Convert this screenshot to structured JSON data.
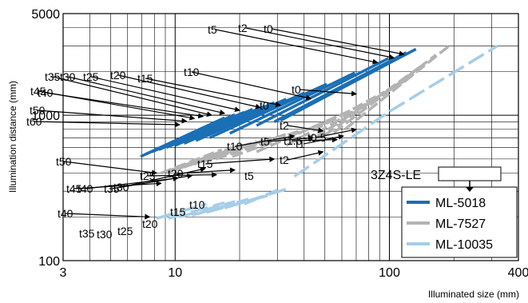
{
  "chart_data": {
    "type": "line",
    "xlabel": "Illuminated size (mm)",
    "ylabel": "Illumination distance (mm)",
    "xscale": "log",
    "yscale": "log",
    "xlim": [
      3,
      400
    ],
    "ylim": [
      100,
      5000
    ],
    "x_ticks": [
      {
        "value": 3,
        "label": "3"
      },
      {
        "value": 10,
        "label": "10"
      },
      {
        "value": 100,
        "label": "100"
      },
      {
        "value": 400,
        "label": "400"
      }
    ],
    "y_ticks": [
      {
        "value": 100,
        "label": "100"
      },
      {
        "value": 1000,
        "label": "1000"
      },
      {
        "value": 5000,
        "label": "5000"
      }
    ],
    "grid": true,
    "legend": {
      "placement": "bottom-right",
      "title": "3Z4S-LE"
    },
    "series": [
      {
        "name": "ML-5018",
        "color": "#1b6fb5",
        "dash": "solid",
        "lines": [
          {
            "label": "t60",
            "x": [
              6.9,
              17
            ],
            "y": [
              520,
              960
            ]
          },
          {
            "label": "t50",
            "x": [
              7.3,
              19
            ],
            "y": [
              540,
              1010
            ]
          },
          {
            "label": "t45",
            "x": [
              7.8,
              21
            ],
            "y": [
              560,
              1050
            ]
          },
          {
            "label": "t40",
            "x": [
              8.4,
              23
            ],
            "y": [
              580,
              1100
            ]
          },
          {
            "label": "t35",
            "x": [
              9.1,
              26
            ],
            "y": [
              600,
              1150
            ]
          },
          {
            "label": "t30",
            "x": [
              10,
              29
            ],
            "y": [
              620,
              1220
            ]
          },
          {
            "label": "t25",
            "x": [
              11,
              33
            ],
            "y": [
              640,
              1290
            ]
          },
          {
            "label": "t20",
            "x": [
              12.5,
              40
            ],
            "y": [
              670,
              1420
            ]
          },
          {
            "label": "t15",
            "x": [
              14.5,
              51
            ],
            "y": [
              700,
              1640
            ]
          },
          {
            "label": "t10",
            "x": [
              18,
              69
            ],
            "y": [
              750,
              1960
            ]
          },
          {
            "label": "t5",
            "x": [
              24,
              99
            ],
            "y": [
              850,
              2460
            ]
          },
          {
            "label": "t2",
            "x": [
              29,
              120
            ],
            "y": [
              900,
              2700
            ]
          },
          {
            "label": "t0",
            "x": [
              31,
              133
            ],
            "y": [
              920,
              2850
            ]
          }
        ]
      },
      {
        "name": "ML-7527",
        "color": "#b3b3b3",
        "dash": "dashed",
        "lines": [
          {
            "label": "t50",
            "x": [
              8.6,
              16.5
            ],
            "y": [
              400,
              580
            ]
          },
          {
            "label": "t45",
            "x": [
              9.2,
              18.5
            ],
            "y": [
              410,
              600
            ]
          },
          {
            "label": "t40",
            "x": [
              10,
              21
            ],
            "y": [
              420,
              630
            ]
          },
          {
            "label": "t35",
            "x": [
              11,
              24
            ],
            "y": [
              440,
              660
            ]
          },
          {
            "label": "t30",
            "x": [
              12.2,
              28
            ],
            "y": [
              460,
              700
            ]
          },
          {
            "label": "t25",
            "x": [
              13.5,
              33
            ],
            "y": [
              480,
              740
            ]
          },
          {
            "label": "t20",
            "x": [
              15.5,
              40
            ],
            "y": [
              500,
              800
            ]
          },
          {
            "label": "t15",
            "x": [
              18.5,
              52
            ],
            "y": [
              520,
              900
            ]
          },
          {
            "label": "t10",
            "x": [
              24,
              70
            ],
            "y": [
              560,
              1120
            ]
          },
          {
            "label": "t5",
            "x": [
              33,
              95
            ],
            "y": [
              620,
              1450
            ]
          },
          {
            "label": "t2",
            "x": [
              40,
              120
            ],
            "y": [
              670,
              1750
            ]
          },
          {
            "label": "t1.5",
            "x": [
              45,
              135
            ],
            "y": [
              700,
              2000
            ]
          },
          {
            "label": "t1",
            "x": [
              50,
              148
            ],
            "y": [
              730,
              2300
            ]
          },
          {
            "label": "t0.5",
            "x": [
              55,
              165
            ],
            "y": [
              760,
              2600
            ]
          },
          {
            "label": "t0",
            "x": [
              62,
              190
            ],
            "y": [
              800,
              3000
            ]
          }
        ]
      },
      {
        "name": "ML-10035",
        "color": "#a6cde8",
        "dash": "long-dashed",
        "lines": [
          {
            "label": "t40",
            "x": [
              8.2,
              14
            ],
            "y": [
              195,
              245
            ]
          },
          {
            "label": "t35",
            "x": [
              9.3,
              17
            ],
            "y": [
              195,
              250
            ]
          },
          {
            "label": "t30",
            "x": [
              10.5,
              19
            ],
            "y": [
              200,
              255
            ]
          },
          {
            "label": "t25",
            "x": [
              12,
              22
            ],
            "y": [
              205,
              265
            ]
          },
          {
            "label": "t20",
            "x": [
              14,
              27
            ],
            "y": [
              215,
              280
            ]
          },
          {
            "label": "t15",
            "x": [
              17,
              33
            ],
            "y": [
              230,
              310
            ]
          },
          {
            "label": "t10",
            "x": [
              21,
              30
            ],
            "y": [
              245,
              305
            ]
          },
          {
            "label": "t5",
            "x": [
              36,
              100
            ],
            "y": [
              380,
              1060
            ]
          },
          {
            "label": "t0",
            "x": [
              100,
              320
            ],
            "y": [
              1060,
              3000
            ]
          }
        ]
      }
    ],
    "annotations": [
      {
        "text": "t60",
        "series": "ML-5018",
        "target": [
          10.5,
          860
        ]
      },
      {
        "text": "t50",
        "series": "ML-5018",
        "target": [
          11.3,
          910
        ]
      },
      {
        "text": "t45",
        "series": "ML-5018",
        "target": [
          12.3,
          950
        ]
      },
      {
        "text": "t40",
        "series": "ML-5018",
        "target": [
          13.5,
          980
        ]
      },
      {
        "text": "t35",
        "series": "ML-5018",
        "target": [
          14.8,
          1000
        ]
      },
      {
        "text": "t30",
        "series": "ML-5018",
        "target": [
          17,
          1030
        ]
      },
      {
        "text": "t25",
        "series": "ML-5018",
        "target": [
          20,
          1080
        ]
      },
      {
        "text": "t20",
        "series": "ML-5018",
        "target": [
          25,
          1130
        ]
      },
      {
        "text": "t15",
        "series": "ML-5018",
        "target": [
          31,
          1170
        ]
      },
      {
        "text": "t10",
        "series": "ML-5018",
        "target": [
          43,
          1300
        ]
      },
      {
        "text": "t5",
        "series": "ML-5018",
        "target": [
          88,
          2300
        ]
      },
      {
        "text": "t2",
        "series": "ML-5018",
        "target": [
          105,
          2480
        ]
      },
      {
        "text": "t0",
        "series": "ML-5018",
        "target": [
          117,
          2620
        ]
      },
      {
        "text": "t0",
        "series": "ML-7527",
        "target": [
          70,
          1400
        ]
      },
      {
        "text": "t50",
        "series": "ML-7527",
        "target": [
          8.2,
          400
        ]
      },
      {
        "text": "t45",
        "series": "ML-7527",
        "target": [
          8.6,
          340
        ]
      },
      {
        "text": "t40",
        "series": "ML-7527",
        "target": [
          10.3,
          370
        ]
      },
      {
        "text": "t35",
        "series": "ML-7527",
        "target": [
          12,
          385
        ]
      },
      {
        "text": "t30",
        "series": "ML-7527",
        "target": [
          13.8,
          430
        ]
      },
      {
        "text": "t25",
        "series": "ML-7527",
        "target": [
          15.6,
          390
        ]
      },
      {
        "text": "t20",
        "series": "ML-7527",
        "target": [
          19,
          420
        ]
      },
      {
        "text": "t15",
        "series": "ML-7527",
        "target": [
          29,
          500
        ]
      },
      {
        "text": "t10",
        "series": "ML-7527",
        "target": [
          36,
          720
        ]
      },
      {
        "text": "t5",
        "series": "ML-7527",
        "target": [
          44,
          700
        ]
      },
      {
        "text": "t2",
        "series": "ML-7527",
        "target": [
          49,
          780
        ]
      },
      {
        "text": "t1.5",
        "series": "ML-7527",
        "target": [
          57,
          680
        ]
      },
      {
        "text": "t1",
        "series": "ML-7527",
        "target": [
          61,
          720
        ]
      },
      {
        "text": "t2",
        "series": "ML-7527",
        "target": [
          49,
          560
        ]
      },
      {
        "text": "t0.5",
        "series": "ML-7527",
        "target": [
          70,
          800
        ]
      },
      {
        "text": "t0",
        "series": "ML-10035"
      },
      {
        "text": "t5",
        "series": "ML-10035"
      },
      {
        "text": "t40",
        "series": "ML-10035",
        "target": [
          7.6,
          200
        ]
      },
      {
        "text": "t35",
        "series": "ML-10035"
      },
      {
        "text": "t30",
        "series": "ML-10035"
      },
      {
        "text": "t25",
        "series": "ML-10035"
      },
      {
        "text": "t20",
        "series": "ML-10035"
      },
      {
        "text": "t15",
        "series": "ML-10035"
      },
      {
        "text": "t10",
        "series": "ML-10035"
      }
    ]
  }
}
